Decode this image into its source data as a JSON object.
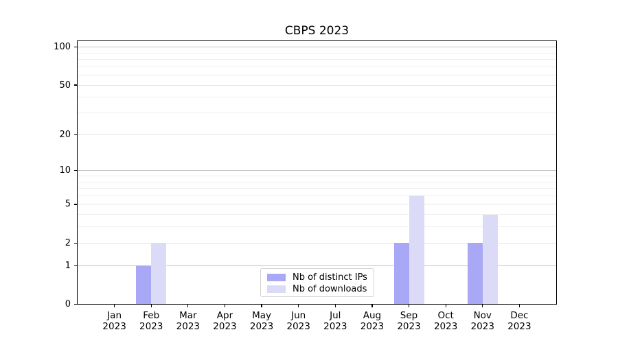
{
  "chart_data": {
    "type": "bar",
    "title": "CBPS 2023",
    "categories": [
      "Jan",
      "Feb",
      "Mar",
      "Apr",
      "May",
      "Jun",
      "Jul",
      "Aug",
      "Sep",
      "Oct",
      "Nov",
      "Dec"
    ],
    "year": "2023",
    "series": [
      {
        "name": "Nb of distinct IPs",
        "color": "#a8a8f6",
        "values": [
          0,
          1,
          0,
          0,
          0,
          0,
          0,
          0,
          2,
          0,
          2,
          0
        ]
      },
      {
        "name": "Nb of downloads",
        "color": "#dbdbf8",
        "values": [
          0,
          2,
          0,
          0,
          0,
          0,
          0,
          0,
          6,
          0,
          4,
          0
        ]
      }
    ],
    "y_axis": {
      "scale": "log1p",
      "max": 112,
      "tick_values": [
        0,
        1,
        2,
        5,
        10,
        20,
        50,
        100
      ],
      "tick_labels": [
        "0",
        "1",
        "2",
        "5",
        "10",
        "20",
        "50",
        "100"
      ],
      "minor_gridline_values": [
        3,
        4,
        6,
        7,
        8,
        9,
        30,
        40,
        60,
        70,
        80,
        90
      ]
    },
    "legend_position": "lower-center",
    "grid": true,
    "colors": {
      "major_gridline": "#c3c3c3",
      "labeled_gridline": "#e4e4e4",
      "minor_gridline": "#eeeeee",
      "axis": "#000000",
      "background": "#ffffff"
    }
  }
}
